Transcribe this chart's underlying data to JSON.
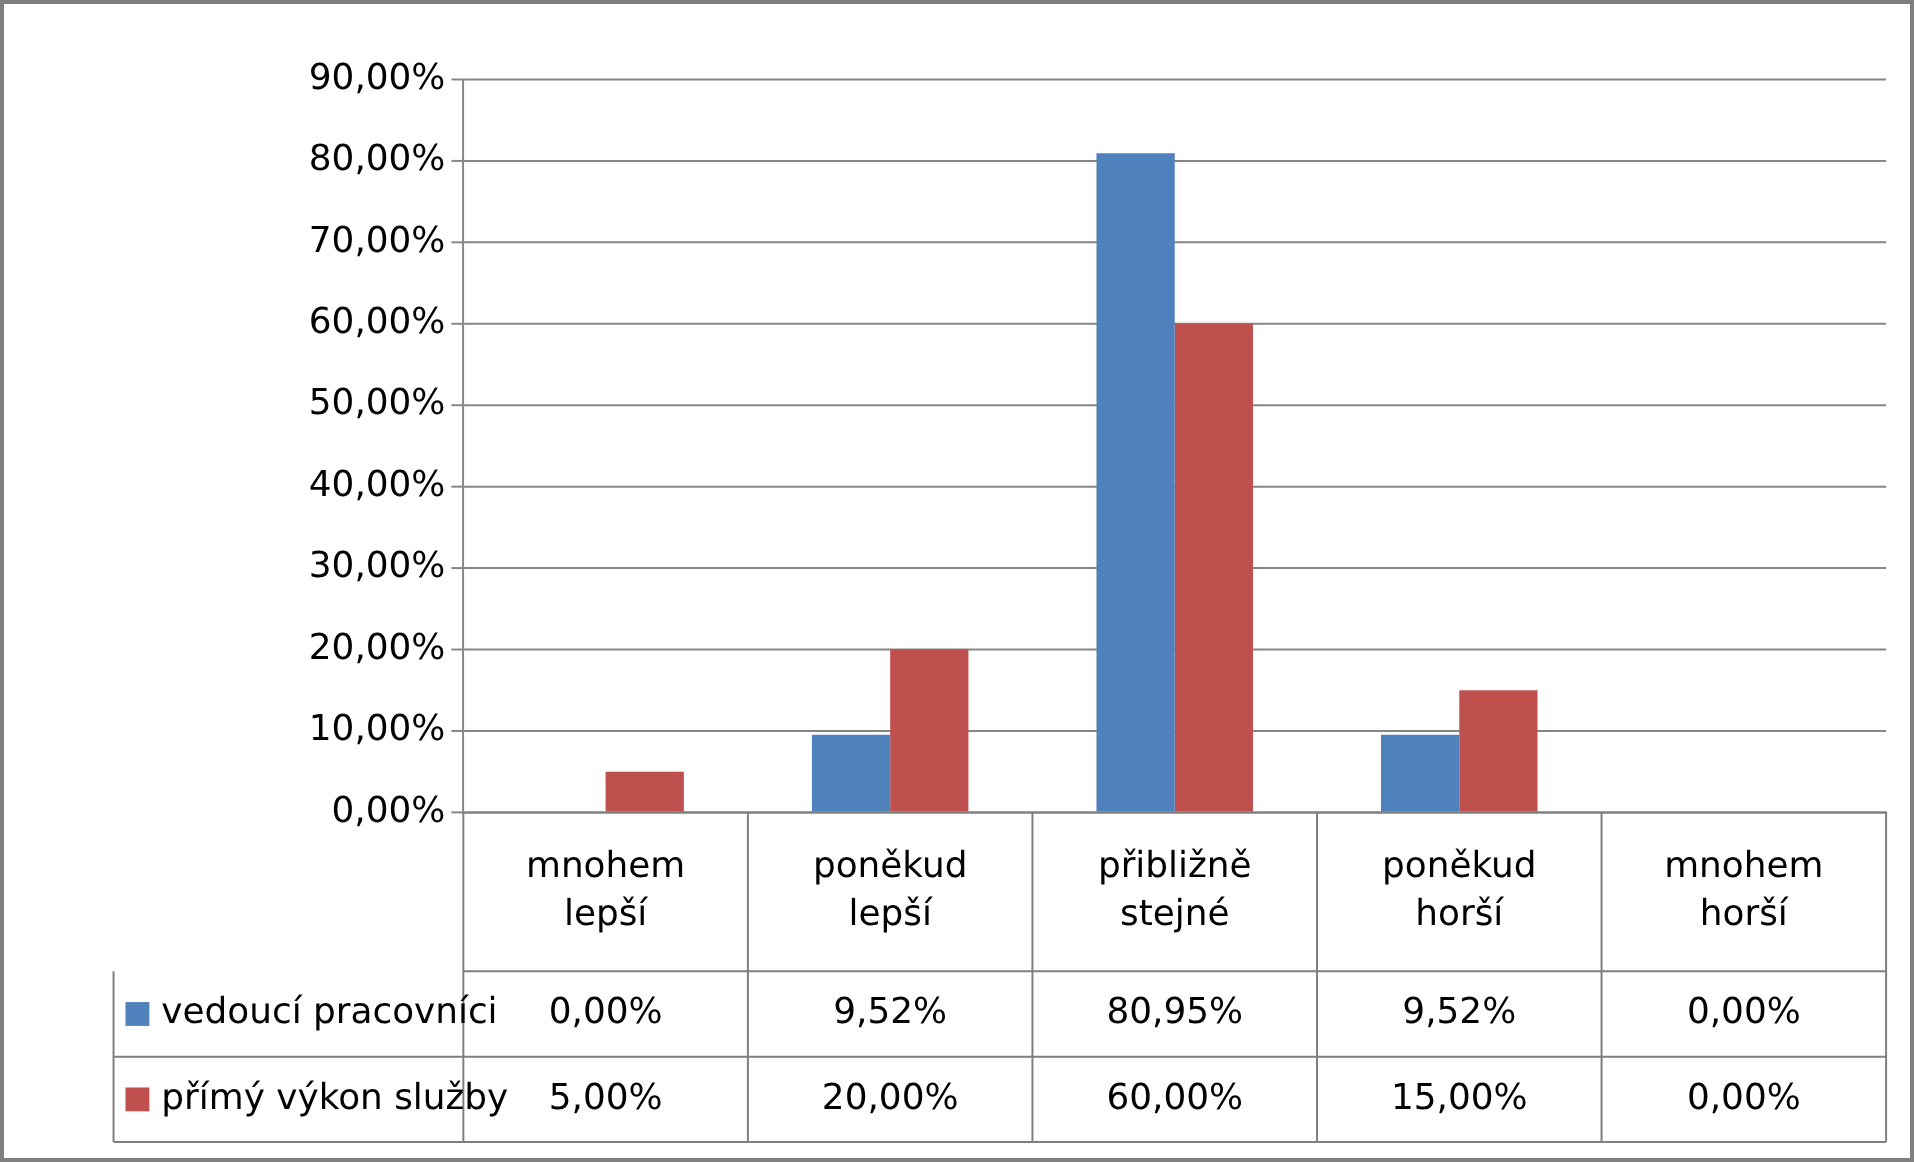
{
  "chart_data": {
    "type": "bar",
    "categories": [
      "mnohem lepší",
      "poněkud lepší",
      "přibližně stejné",
      "poněkud horší",
      "mnohem horší"
    ],
    "series": [
      {
        "name": "vedoucí pracovníci",
        "color": "#4f81bd",
        "values": [
          0,
          9.52,
          80.95,
          9.52,
          0
        ],
        "value_labels": [
          "0,00%",
          "9,52%",
          "80,95%",
          "9,52%",
          "0,00%"
        ]
      },
      {
        "name": "přímý výkon služby",
        "color": "#c0504d",
        "values": [
          5,
          20,
          60,
          15,
          0
        ],
        "value_labels": [
          "5,00%",
          "20,00%",
          "60,00%",
          "15,00%",
          "0,00%"
        ]
      }
    ],
    "ylim": [
      0,
      90
    ],
    "yticks": [
      {
        "value": 0,
        "label": "0,00%"
      },
      {
        "value": 10,
        "label": "10,00%"
      },
      {
        "value": 20,
        "label": "20,00%"
      },
      {
        "value": 30,
        "label": "30,00%"
      },
      {
        "value": 40,
        "label": "40,00%"
      },
      {
        "value": 50,
        "label": "50,00%"
      },
      {
        "value": 60,
        "label": "60,00%"
      },
      {
        "value": 70,
        "label": "70,00%"
      },
      {
        "value": 80,
        "label": "80,00%"
      },
      {
        "value": 90,
        "label": "90,00%"
      }
    ],
    "grid": "y",
    "legend": "bottom",
    "data_labels": true
  }
}
